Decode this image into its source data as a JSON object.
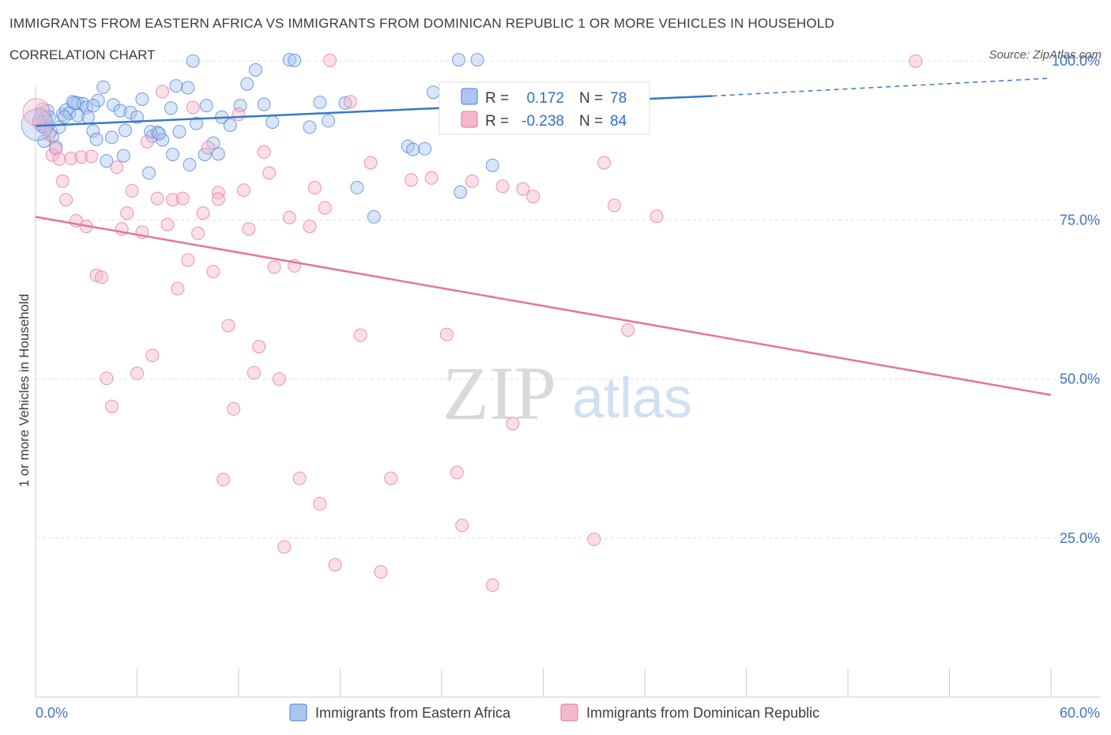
{
  "title": "IMMIGRANTS FROM EASTERN AFRICA VS IMMIGRANTS FROM DOMINICAN REPUBLIC 1 OR MORE VEHICLES IN HOUSEHOLD",
  "subtitle": "CORRELATION CHART",
  "source": "Source: ZipAtlas.com",
  "watermark": {
    "zip": "ZIP",
    "atlas": "atlas"
  },
  "chart_data": {
    "type": "scatter",
    "xlabel": "",
    "ylabel": "1 or more Vehicles in Household",
    "xlim": [
      0,
      60
    ],
    "ylim": [
      0,
      105
    ],
    "x_tick_labels": [
      "0.0%",
      "60.0%"
    ],
    "y_ticks": [
      25,
      50,
      75,
      100
    ],
    "y_tick_labels": [
      "25.0%",
      "50.0%",
      "75.0%",
      "100.0%"
    ],
    "grid": true,
    "legend_position": "top-center",
    "colors": {
      "blue": "#4a7fd4",
      "blue_fill": "#aac6f0",
      "pink": "#e5739d",
      "pink_fill": "#f5b9cd",
      "blue_line": "#3a78c9",
      "pink_line": "#e5739d"
    },
    "stats": [
      {
        "r_label": "R =",
        "r": "0.172",
        "n_label": "N =",
        "n": "78",
        "color": "#4a7fd4"
      },
      {
        "r_label": "R =",
        "r": "-0.238",
        "n_label": "N =",
        "n": "84",
        "color": "#e5739d"
      }
    ],
    "series": [
      {
        "name": "Immigrants from Eastern Africa",
        "color": "#4a7fd4",
        "trend": {
          "x0": 0,
          "y0": 89.8,
          "x1": 40,
          "y1": 94.5,
          "dash_to_x": 60,
          "dash_to_y": 97.3
        },
        "points": [
          [
            0.2,
            90.6
          ],
          [
            0.3,
            91.7
          ],
          [
            0.4,
            89.7
          ],
          [
            0.5,
            89.6
          ],
          [
            0.6,
            91.1
          ],
          [
            0.7,
            92.2
          ],
          [
            0.8,
            91.2
          ],
          [
            0.9,
            89.0
          ],
          [
            1.0,
            88.2
          ],
          [
            1.2,
            86.5
          ],
          [
            1.4,
            89.6
          ],
          [
            1.6,
            91.6
          ],
          [
            1.8,
            92.3
          ],
          [
            2.0,
            91.8
          ],
          [
            2.2,
            93.6
          ],
          [
            2.5,
            93.4
          ],
          [
            2.8,
            93.3
          ],
          [
            3.0,
            92.7
          ],
          [
            3.1,
            91.2
          ],
          [
            3.4,
            89.0
          ],
          [
            3.7,
            93.8
          ],
          [
            4.0,
            95.9
          ],
          [
            4.2,
            84.3
          ],
          [
            4.6,
            93.1
          ],
          [
            5.0,
            92.2
          ],
          [
            5.3,
            89.1
          ],
          [
            5.6,
            91.9
          ],
          [
            6.0,
            91.2
          ],
          [
            6.3,
            94.0
          ],
          [
            6.9,
            88.2
          ],
          [
            7.2,
            88.8
          ],
          [
            7.5,
            87.6
          ],
          [
            8.0,
            92.6
          ],
          [
            8.5,
            88.9
          ],
          [
            9.0,
            95.8
          ],
          [
            9.5,
            90.2
          ],
          [
            10.0,
            85.3
          ],
          [
            10.5,
            87.1
          ],
          [
            10.8,
            85.4
          ],
          [
            11.0,
            91.2
          ],
          [
            11.5,
            89.9
          ],
          [
            12.1,
            93.0
          ],
          [
            12.5,
            96.4
          ],
          [
            13.0,
            98.6
          ],
          [
            13.5,
            93.2
          ],
          [
            14.0,
            90.4
          ],
          [
            15.0,
            100.2
          ],
          [
            15.3,
            100.1
          ],
          [
            16.2,
            89.6
          ],
          [
            16.8,
            93.5
          ],
          [
            17.3,
            90.6
          ],
          [
            18.3,
            93.4
          ],
          [
            19.0,
            80.1
          ],
          [
            20.0,
            75.5
          ],
          [
            22.0,
            86.6
          ],
          [
            23.0,
            86.2
          ],
          [
            25.1,
            79.4
          ],
          [
            23.5,
            95.1
          ],
          [
            25.0,
            100.2
          ],
          [
            26.1,
            100.2
          ],
          [
            27.0,
            83.6
          ],
          [
            9.3,
            100.0
          ],
          [
            2.3,
            93.4
          ],
          [
            3.4,
            93.0
          ],
          [
            6.8,
            88.9
          ],
          [
            7.3,
            88.6
          ],
          [
            8.1,
            85.3
          ],
          [
            9.1,
            83.7
          ],
          [
            10.1,
            93.0
          ],
          [
            5.2,
            85.1
          ],
          [
            4.5,
            88.0
          ],
          [
            3.6,
            87.7
          ],
          [
            2.5,
            91.4
          ],
          [
            1.7,
            91.2
          ],
          [
            8.3,
            96.1
          ],
          [
            6.7,
            82.4
          ],
          [
            0.5,
            87.4
          ],
          [
            22.3,
            86.1
          ]
        ]
      },
      {
        "name": "Immigrants from Dominican Republic",
        "color": "#e5739d",
        "trend": {
          "x0": 0,
          "y0": 75.5,
          "x1": 60,
          "y1": 47.5
        },
        "points": [
          [
            0.2,
            90.2
          ],
          [
            0.4,
            92.4
          ],
          [
            0.6,
            89.8
          ],
          [
            0.8,
            88.5
          ],
          [
            1.0,
            85.2
          ],
          [
            1.2,
            86.2
          ],
          [
            1.4,
            84.6
          ],
          [
            1.6,
            81.1
          ],
          [
            1.8,
            78.2
          ],
          [
            2.1,
            84.7
          ],
          [
            2.4,
            74.9
          ],
          [
            2.7,
            84.9
          ],
          [
            3.0,
            74.0
          ],
          [
            3.3,
            85.0
          ],
          [
            3.6,
            66.3
          ],
          [
            3.9,
            66.0
          ],
          [
            4.2,
            50.1
          ],
          [
            4.5,
            45.7
          ],
          [
            4.8,
            83.3
          ],
          [
            5.1,
            73.6
          ],
          [
            5.4,
            76.1
          ],
          [
            5.7,
            79.6
          ],
          [
            6.0,
            50.9
          ],
          [
            6.3,
            73.1
          ],
          [
            6.6,
            87.3
          ],
          [
            6.9,
            53.7
          ],
          [
            7.2,
            78.4
          ],
          [
            7.5,
            95.2
          ],
          [
            7.8,
            74.3
          ],
          [
            8.1,
            78.2
          ],
          [
            8.4,
            64.2
          ],
          [
            8.7,
            78.4
          ],
          [
            9.0,
            68.7
          ],
          [
            9.3,
            92.7
          ],
          [
            9.6,
            72.9
          ],
          [
            9.9,
            76.1
          ],
          [
            10.2,
            86.4
          ],
          [
            10.5,
            66.9
          ],
          [
            10.8,
            79.3
          ],
          [
            11.1,
            34.2
          ],
          [
            11.4,
            58.4
          ],
          [
            11.7,
            45.3
          ],
          [
            12.0,
            91.6
          ],
          [
            12.3,
            79.7
          ],
          [
            12.6,
            73.6
          ],
          [
            12.9,
            51.0
          ],
          [
            13.2,
            55.1
          ],
          [
            13.5,
            85.7
          ],
          [
            13.8,
            82.4
          ],
          [
            14.1,
            67.6
          ],
          [
            14.4,
            50.0
          ],
          [
            14.7,
            23.6
          ],
          [
            15.0,
            75.4
          ],
          [
            15.3,
            67.8
          ],
          [
            15.6,
            34.4
          ],
          [
            16.2,
            74.0
          ],
          [
            16.5,
            80.1
          ],
          [
            16.8,
            30.4
          ],
          [
            17.1,
            76.9
          ],
          [
            17.4,
            100.1
          ],
          [
            17.7,
            20.8
          ],
          [
            18.6,
            93.6
          ],
          [
            19.2,
            56.9
          ],
          [
            19.8,
            84.0
          ],
          [
            20.4,
            19.7
          ],
          [
            21.0,
            34.4
          ],
          [
            22.2,
            81.3
          ],
          [
            23.4,
            81.6
          ],
          [
            24.3,
            57.0
          ],
          [
            24.9,
            35.3
          ],
          [
            25.2,
            27.0
          ],
          [
            25.8,
            81.1
          ],
          [
            27.0,
            17.6
          ],
          [
            27.6,
            80.3
          ],
          [
            28.2,
            43.0
          ],
          [
            28.8,
            79.9
          ],
          [
            29.4,
            78.7
          ],
          [
            33.0,
            24.8
          ],
          [
            33.6,
            84.0
          ],
          [
            34.2,
            77.3
          ],
          [
            35.0,
            57.7
          ],
          [
            36.7,
            75.6
          ],
          [
            52.0,
            100.0
          ],
          [
            10.8,
            78.3
          ]
        ]
      }
    ]
  }
}
